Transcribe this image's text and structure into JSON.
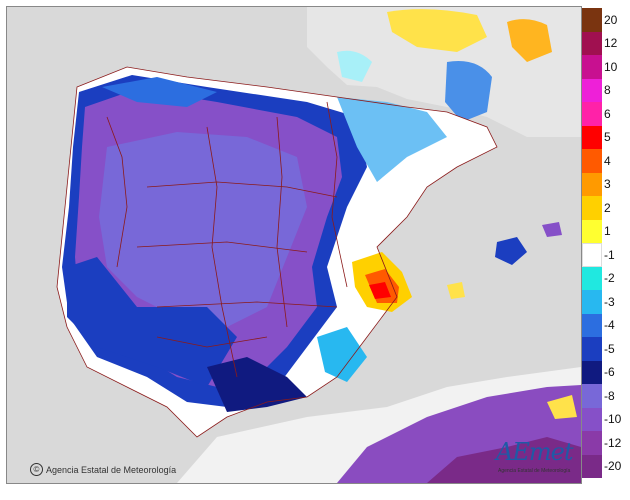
{
  "map": {
    "copyright_symbol": "©",
    "copyright_text": "Agencia Estatal de Meteorología",
    "logo_text": "AEmet",
    "logo_subtext": "Agencia Estatal de Meteorología"
  },
  "legend": {
    "items": [
      {
        "label": "20",
        "color": "#7a3410"
      },
      {
        "label": "12",
        "color": "#a01050"
      },
      {
        "label": "10",
        "color": "#c81090"
      },
      {
        "label": "8",
        "color": "#ee20d8"
      },
      {
        "label": "6",
        "color": "#ff22a8"
      },
      {
        "label": "5",
        "color": "#ff0000"
      },
      {
        "label": "4",
        "color": "#ff5a00"
      },
      {
        "label": "3",
        "color": "#ff9a00"
      },
      {
        "label": "2",
        "color": "#ffd000"
      },
      {
        "label": "1",
        "color": "#ffff30"
      },
      {
        "label": "-1",
        "color": "#ffffff"
      },
      {
        "label": "-2",
        "color": "#20e8e0"
      },
      {
        "label": "-3",
        "color": "#28b8f0"
      },
      {
        "label": "-4",
        "color": "#2c6ee0"
      },
      {
        "label": "-5",
        "color": "#1b3ec0"
      },
      {
        "label": "-6",
        "color": "#101a80"
      },
      {
        "label": "-8",
        "color": "#7868d8"
      },
      {
        "label": "-10",
        "color": "#8650c8"
      },
      {
        "label": "-12",
        "color": "#8a3aa8"
      },
      {
        "label": "-20",
        "color": "#7a2a88"
      }
    ]
  }
}
